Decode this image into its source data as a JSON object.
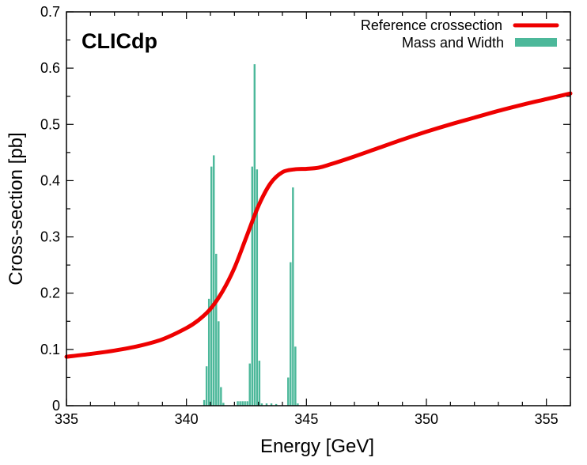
{
  "chart_data": {
    "type": "line",
    "annotations": [
      "CLICdp"
    ],
    "xlabel": "Energy [GeV]",
    "ylabel": "Cross-section [pb]",
    "xlim": [
      335,
      356
    ],
    "ylim": [
      0,
      0.7
    ],
    "x_ticks": [
      "335",
      "340",
      "345",
      "350",
      "355"
    ],
    "y_ticks": [
      "0",
      "0.1",
      "0.2",
      "0.3",
      "0.4",
      "0.5",
      "0.6",
      "0.7"
    ],
    "x_tick_values": [
      335,
      340,
      345,
      350,
      355
    ],
    "y_tick_values": [
      0,
      0.1,
      0.2,
      0.3,
      0.4,
      0.5,
      0.6,
      0.7
    ],
    "grid": false,
    "legend_position": "top-right",
    "colors": {
      "reference": "#ee0000",
      "histogram": "#4cb89a"
    },
    "series": [
      {
        "name": "Reference crossection",
        "kind": "line",
        "x": [
          335,
          336,
          337,
          338,
          339,
          340,
          340.5,
          341,
          341.5,
          342,
          342.5,
          343,
          343.5,
          344,
          344.5,
          345,
          345.5,
          346,
          347,
          348,
          349,
          350,
          351,
          352,
          353,
          354,
          355,
          356
        ],
        "y": [
          0.087,
          0.092,
          0.098,
          0.106,
          0.118,
          0.138,
          0.152,
          0.172,
          0.203,
          0.245,
          0.3,
          0.355,
          0.395,
          0.415,
          0.42,
          0.421,
          0.423,
          0.429,
          0.443,
          0.458,
          0.473,
          0.487,
          0.5,
          0.512,
          0.524,
          0.535,
          0.545,
          0.555
        ]
      },
      {
        "name": "Mass and Width",
        "kind": "histogram",
        "bin_width": 0.1,
        "bins": [
          {
            "x": 340.7,
            "y": 0.01
          },
          {
            "x": 340.8,
            "y": 0.07
          },
          {
            "x": 340.9,
            "y": 0.19
          },
          {
            "x": 341.0,
            "y": 0.425
          },
          {
            "x": 341.1,
            "y": 0.445
          },
          {
            "x": 341.2,
            "y": 0.27
          },
          {
            "x": 341.3,
            "y": 0.15
          },
          {
            "x": 341.4,
            "y": 0.033
          },
          {
            "x": 341.5,
            "y": 0.005
          },
          {
            "x": 342.1,
            "y": 0.008
          },
          {
            "x": 342.2,
            "y": 0.008
          },
          {
            "x": 342.3,
            "y": 0.008
          },
          {
            "x": 342.4,
            "y": 0.008
          },
          {
            "x": 342.5,
            "y": 0.008
          },
          {
            "x": 342.6,
            "y": 0.075
          },
          {
            "x": 342.7,
            "y": 0.425
          },
          {
            "x": 342.8,
            "y": 0.607
          },
          {
            "x": 342.9,
            "y": 0.42
          },
          {
            "x": 343.0,
            "y": 0.08
          },
          {
            "x": 343.1,
            "y": 0.004
          },
          {
            "x": 343.3,
            "y": 0.004
          },
          {
            "x": 343.5,
            "y": 0.004
          },
          {
            "x": 343.7,
            "y": 0.003
          },
          {
            "x": 344.2,
            "y": 0.05
          },
          {
            "x": 344.3,
            "y": 0.255
          },
          {
            "x": 344.4,
            "y": 0.388
          },
          {
            "x": 344.5,
            "y": 0.105
          },
          {
            "x": 344.6,
            "y": 0.004
          }
        ]
      }
    ]
  }
}
